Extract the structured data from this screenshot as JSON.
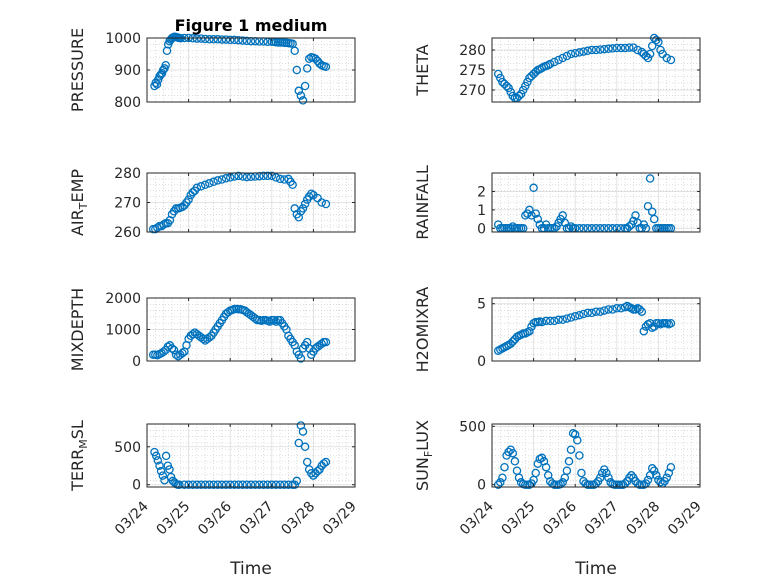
{
  "figure": {
    "title": "Figure 1 medium",
    "xlabel": "Time"
  },
  "colors": {
    "marker": "#0072BD",
    "axis": "#262626",
    "grid": "#c8c8c8"
  },
  "chart_data": [
    {
      "type": "scatter",
      "ylabel": "PRESSURE",
      "ylabel_sub": "",
      "ylim": [
        800,
        1000
      ],
      "yticks": [
        800,
        900,
        1000
      ],
      "xlim": [
        0,
        5
      ],
      "show_xticks": false,
      "show_xlabel": false,
      "x": [
        0.18,
        0.21,
        0.24,
        0.27,
        0.3,
        0.33,
        0.36,
        0.39,
        0.42,
        0.45,
        0.48,
        0.51,
        0.54,
        0.57,
        0.6,
        0.63,
        0.66,
        0.69,
        0.72,
        0.75,
        0.78,
        0.81,
        0.9,
        1.0,
        1.1,
        1.2,
        1.3,
        1.4,
        1.5,
        1.6,
        1.7,
        1.8,
        1.9,
        2.0,
        2.1,
        2.2,
        2.3,
        2.4,
        2.5,
        2.6,
        2.7,
        2.8,
        2.9,
        3.0,
        3.05,
        3.1,
        3.15,
        3.2,
        3.25,
        3.3,
        3.35,
        3.4,
        3.45,
        3.5,
        3.55,
        3.6,
        3.65,
        3.7,
        3.75,
        3.8,
        3.85,
        3.9,
        3.95,
        4.0,
        4.05,
        4.1,
        4.15,
        4.2,
        4.25,
        4.3
      ],
      "y": [
        850,
        860,
        855,
        870,
        880,
        885,
        890,
        900,
        905,
        915,
        960,
        980,
        990,
        995,
        1000,
        1002,
        1004,
        1003,
        1002,
        1001,
        1000,
        999,
        1000,
        1000,
        999,
        998,
        998,
        997,
        996,
        996,
        996,
        995,
        995,
        994,
        994,
        993,
        992,
        991,
        990,
        990,
        989,
        989,
        988,
        988,
        988,
        987,
        986,
        986,
        986,
        985,
        985,
        984,
        983,
        982,
        960,
        900,
        835,
        820,
        805,
        850,
        905,
        935,
        940,
        938,
        935,
        928,
        920,
        915,
        912,
        910
      ]
    },
    {
      "type": "scatter",
      "ylabel": "THETA",
      "ylabel_sub": "",
      "ylim": [
        267,
        283
      ],
      "yticks": [
        270,
        275,
        280
      ],
      "xlim": [
        0,
        5
      ],
      "show_xticks": false,
      "show_xlabel": false,
      "x": [
        0.15,
        0.2,
        0.25,
        0.3,
        0.35,
        0.4,
        0.45,
        0.5,
        0.55,
        0.6,
        0.65,
        0.7,
        0.75,
        0.8,
        0.85,
        0.9,
        0.95,
        1.0,
        1.05,
        1.1,
        1.15,
        1.2,
        1.25,
        1.3,
        1.35,
        1.4,
        1.5,
        1.6,
        1.7,
        1.8,
        1.9,
        2.0,
        2.1,
        2.2,
        2.3,
        2.4,
        2.5,
        2.6,
        2.7,
        2.8,
        2.9,
        3.0,
        3.1,
        3.2,
        3.3,
        3.4,
        3.5,
        3.6,
        3.65,
        3.7,
        3.75,
        3.8,
        3.85,
        3.9,
        3.95,
        4.0,
        4.05,
        4.1,
        4.2,
        4.3
      ],
      "y": [
        274,
        273,
        272,
        271.5,
        271,
        270.5,
        269.5,
        268.5,
        268,
        268,
        268.5,
        269,
        270,
        271,
        272,
        273,
        273.5,
        274,
        274.5,
        275,
        275.2,
        275.5,
        275.8,
        276,
        276.2,
        276.5,
        277,
        277.5,
        278,
        278.5,
        279,
        279.2,
        279.4,
        279.6,
        279.8,
        280,
        280,
        280.1,
        280.2,
        280.3,
        280.4,
        280.5,
        280.5,
        280.5,
        280.6,
        280.6,
        280,
        279.5,
        279,
        278.5,
        278,
        279,
        281,
        283,
        282.5,
        282,
        280,
        279,
        278,
        277.5
      ]
    },
    {
      "type": "scatter",
      "ylabel": "AIR",
      "ylabel_sub": "T",
      "ylabel_rest": "EMP",
      "ylim": [
        260,
        280
      ],
      "yticks": [
        260,
        270,
        280
      ],
      "xlim": [
        0,
        5
      ],
      "show_xticks": false,
      "show_xlabel": false,
      "x": [
        0.15,
        0.2,
        0.25,
        0.3,
        0.35,
        0.4,
        0.45,
        0.5,
        0.55,
        0.6,
        0.65,
        0.7,
        0.75,
        0.8,
        0.85,
        0.9,
        0.95,
        1.0,
        1.05,
        1.1,
        1.15,
        1.2,
        1.3,
        1.4,
        1.5,
        1.6,
        1.7,
        1.8,
        1.9,
        2.0,
        2.1,
        2.2,
        2.3,
        2.4,
        2.5,
        2.6,
        2.7,
        2.8,
        2.9,
        3.0,
        3.1,
        3.2,
        3.3,
        3.4,
        3.45,
        3.5,
        3.55,
        3.6,
        3.65,
        3.7,
        3.75,
        3.8,
        3.85,
        3.9,
        3.95,
        4.0,
        4.1,
        4.2,
        4.3
      ],
      "y": [
        261,
        261,
        261.5,
        262,
        262,
        262.5,
        263,
        263,
        264,
        266,
        267,
        268,
        268,
        268.2,
        268.5,
        269,
        270,
        271,
        272.5,
        273.5,
        274,
        275,
        275.5,
        276,
        276.5,
        277,
        277.5,
        277.8,
        278.2,
        278.5,
        278.8,
        279,
        278.8,
        278.6,
        278.7,
        278.8,
        278.9,
        279,
        279,
        279,
        278.5,
        278,
        277.8,
        278,
        277,
        276,
        268,
        266,
        265,
        267,
        268,
        269.5,
        271,
        272,
        273,
        272.5,
        271.5,
        270,
        269.5
      ]
    },
    {
      "type": "scatter",
      "ylabel": "RAINFALL",
      "ylabel_sub": "",
      "ylim": [
        -0.2,
        3.0
      ],
      "yticks": [
        0,
        1,
        2
      ],
      "xlim": [
        0,
        5
      ],
      "show_xticks": false,
      "show_xlabel": false,
      "x": [
        0.15,
        0.2,
        0.25,
        0.3,
        0.35,
        0.4,
        0.45,
        0.5,
        0.55,
        0.6,
        0.65,
        0.7,
        0.75,
        0.8,
        0.85,
        0.9,
        0.95,
        1.0,
        1.05,
        1.1,
        1.15,
        1.2,
        1.25,
        1.3,
        1.35,
        1.4,
        1.45,
        1.5,
        1.55,
        1.6,
        1.65,
        1.7,
        1.75,
        1.8,
        1.85,
        1.9,
        1.95,
        2.0,
        2.1,
        2.2,
        2.3,
        2.4,
        2.5,
        2.6,
        2.7,
        2.8,
        2.9,
        3.0,
        3.1,
        3.2,
        3.25,
        3.3,
        3.35,
        3.4,
        3.45,
        3.5,
        3.55,
        3.6,
        3.65,
        3.7,
        3.75,
        3.8,
        3.85,
        3.9,
        3.95,
        4.0,
        4.05,
        4.1,
        4.15,
        4.2,
        4.25,
        4.3
      ],
      "y": [
        0.2,
        0,
        0,
        0,
        0,
        0,
        0,
        0.1,
        0,
        0,
        0,
        0,
        0,
        0.7,
        0.8,
        1.0,
        0.7,
        2.2,
        0.8,
        0.5,
        0.2,
        0,
        0,
        0.2,
        0,
        0,
        0,
        0,
        0.1,
        0.3,
        0.5,
        0.7,
        0.3,
        0,
        0,
        0.1,
        0,
        0,
        0,
        0,
        0,
        0,
        0,
        0,
        0,
        0,
        0,
        0,
        0,
        0,
        0,
        0.1,
        0.2,
        0.4,
        0.7,
        0.3,
        0,
        0,
        0.2,
        0,
        1.2,
        2.7,
        0.9,
        0.5,
        0,
        0,
        0,
        0,
        0,
        0,
        0,
        0
      ]
    },
    {
      "type": "scatter",
      "ylabel": "MIXDEPTH",
      "ylabel_sub": "",
      "ylim": [
        0,
        2000
      ],
      "yticks": [
        0,
        1000,
        2000
      ],
      "xlim": [
        0,
        5
      ],
      "show_xticks": false,
      "show_xlabel": false,
      "x": [
        0.15,
        0.2,
        0.25,
        0.3,
        0.35,
        0.4,
        0.45,
        0.5,
        0.55,
        0.6,
        0.65,
        0.7,
        0.75,
        0.8,
        0.85,
        0.9,
        0.95,
        1.0,
        1.05,
        1.1,
        1.15,
        1.2,
        1.25,
        1.3,
        1.35,
        1.4,
        1.45,
        1.5,
        1.55,
        1.6,
        1.65,
        1.7,
        1.75,
        1.8,
        1.85,
        1.9,
        1.95,
        2.0,
        2.05,
        2.1,
        2.15,
        2.2,
        2.25,
        2.3,
        2.35,
        2.4,
        2.45,
        2.5,
        2.55,
        2.6,
        2.65,
        2.7,
        2.75,
        2.8,
        2.85,
        2.9,
        2.95,
        3.0,
        3.05,
        3.1,
        3.15,
        3.2,
        3.25,
        3.3,
        3.35,
        3.4,
        3.45,
        3.5,
        3.55,
        3.6,
        3.65,
        3.7,
        3.75,
        3.8,
        3.85,
        3.9,
        3.95,
        4.0,
        4.05,
        4.1,
        4.15,
        4.2,
        4.25,
        4.3
      ],
      "y": [
        200,
        200,
        180,
        220,
        250,
        300,
        350,
        450,
        500,
        400,
        350,
        200,
        150,
        200,
        250,
        300,
        500,
        700,
        800,
        850,
        900,
        850,
        800,
        750,
        700,
        650,
        700,
        750,
        800,
        900,
        1000,
        1100,
        1200,
        1300,
        1400,
        1500,
        1550,
        1600,
        1620,
        1650,
        1650,
        1640,
        1640,
        1620,
        1600,
        1550,
        1500,
        1450,
        1400,
        1350,
        1300,
        1300,
        1280,
        1300,
        1300,
        1280,
        1250,
        1300,
        1300,
        1250,
        1300,
        1300,
        1200,
        1100,
        1000,
        800,
        700,
        600,
        500,
        300,
        200,
        80,
        400,
        500,
        600,
        400,
        200,
        300,
        400,
        450,
        500,
        550,
        600,
        600
      ]
    },
    {
      "type": "scatter",
      "ylabel": "H2OMIXRA",
      "ylabel_sub": "",
      "ylim": [
        0,
        5.5
      ],
      "yticks": [
        0,
        5
      ],
      "xlim": [
        0,
        5
      ],
      "show_xticks": false,
      "show_xlabel": false,
      "x": [
        0.15,
        0.2,
        0.25,
        0.3,
        0.35,
        0.4,
        0.45,
        0.5,
        0.55,
        0.6,
        0.65,
        0.7,
        0.75,
        0.8,
        0.85,
        0.9,
        0.95,
        1.0,
        1.05,
        1.1,
        1.15,
        1.2,
        1.3,
        1.4,
        1.5,
        1.6,
        1.7,
        1.8,
        1.9,
        2.0,
        2.1,
        2.2,
        2.3,
        2.4,
        2.5,
        2.6,
        2.7,
        2.8,
        2.9,
        3.0,
        3.1,
        3.2,
        3.25,
        3.3,
        3.35,
        3.4,
        3.45,
        3.5,
        3.55,
        3.6,
        3.65,
        3.7,
        3.75,
        3.8,
        3.85,
        3.9,
        3.95,
        4.0,
        4.05,
        4.1,
        4.15,
        4.2,
        4.25,
        4.3
      ],
      "y": [
        0.9,
        1.0,
        1.1,
        1.2,
        1.3,
        1.4,
        1.5,
        1.7,
        1.9,
        2.1,
        2.2,
        2.3,
        2.4,
        2.4,
        2.5,
        2.6,
        3.0,
        3.3,
        3.4,
        3.4,
        3.45,
        3.4,
        3.5,
        3.5,
        3.5,
        3.6,
        3.6,
        3.7,
        3.8,
        3.9,
        4.0,
        4.1,
        4.2,
        4.2,
        4.3,
        4.3,
        4.4,
        4.5,
        4.5,
        4.6,
        4.6,
        4.7,
        4.8,
        4.7,
        4.6,
        4.5,
        4.5,
        4.6,
        4.5,
        4.3,
        2.6,
        3.0,
        3.2,
        3.3,
        2.9,
        3.0,
        3.3,
        3.3,
        3.2,
        3.3,
        3.3,
        3.3,
        3.2,
        3.3
      ]
    },
    {
      "type": "scatter",
      "ylabel": "TERR",
      "ylabel_sub": "M",
      "ylabel_rest": "SL",
      "ylim": [
        -30,
        800
      ],
      "yticks": [
        0,
        500
      ],
      "xlim": [
        0,
        5
      ],
      "xticks": [
        0,
        1,
        2,
        3,
        4,
        5
      ],
      "xticklabels": [
        "03/24",
        "03/25",
        "03/26",
        "03/27",
        "03/28",
        "03/29"
      ],
      "show_xticks": true,
      "show_xlabel": true,
      "x": [
        0.18,
        0.22,
        0.26,
        0.3,
        0.34,
        0.38,
        0.42,
        0.46,
        0.5,
        0.54,
        0.58,
        0.62,
        0.66,
        0.7,
        0.74,
        0.78,
        0.9,
        1.0,
        1.1,
        1.2,
        1.3,
        1.4,
        1.5,
        1.6,
        1.7,
        1.8,
        1.9,
        2.0,
        2.1,
        2.2,
        2.3,
        2.4,
        2.5,
        2.6,
        2.7,
        2.8,
        2.9,
        3.0,
        3.1,
        3.2,
        3.3,
        3.4,
        3.5,
        3.55,
        3.6,
        3.65,
        3.7,
        3.75,
        3.8,
        3.85,
        3.9,
        3.95,
        4.0,
        4.05,
        4.1,
        4.15,
        4.2,
        4.25,
        4.3
      ],
      "y": [
        430,
        380,
        320,
        250,
        180,
        120,
        60,
        380,
        250,
        200,
        100,
        50,
        30,
        10,
        0,
        0,
        0,
        0,
        0,
        0,
        0,
        0,
        0,
        0,
        0,
        0,
        0,
        0,
        0,
        0,
        0,
        0,
        0,
        0,
        0,
        0,
        0,
        0,
        0,
        0,
        0,
        0,
        0,
        0,
        50,
        550,
        780,
        700,
        500,
        300,
        200,
        150,
        120,
        150,
        180,
        200,
        250,
        280,
        300
      ]
    },
    {
      "type": "scatter",
      "ylabel": "SUN",
      "ylabel_sub": "F",
      "ylabel_rest": "LUX",
      "ylim": [
        -20,
        520
      ],
      "yticks": [
        0,
        500
      ],
      "xlim": [
        0,
        5
      ],
      "xticks": [
        0,
        1,
        2,
        3,
        4,
        5
      ],
      "xticklabels": [
        "03/24",
        "03/25",
        "03/26",
        "03/27",
        "03/28",
        "03/29"
      ],
      "show_xticks": true,
      "show_xlabel": true,
      "x": [
        0.15,
        0.2,
        0.25,
        0.3,
        0.35,
        0.4,
        0.45,
        0.5,
        0.55,
        0.6,
        0.65,
        0.7,
        0.75,
        0.8,
        0.85,
        0.9,
        0.95,
        1.0,
        1.05,
        1.1,
        1.15,
        1.2,
        1.25,
        1.3,
        1.35,
        1.4,
        1.45,
        1.5,
        1.55,
        1.6,
        1.65,
        1.7,
        1.75,
        1.8,
        1.85,
        1.9,
        1.95,
        2.0,
        2.05,
        2.1,
        2.15,
        2.2,
        2.25,
        2.3,
        2.35,
        2.4,
        2.45,
        2.5,
        2.55,
        2.6,
        2.65,
        2.7,
        2.75,
        2.8,
        2.85,
        2.9,
        2.95,
        3.0,
        3.05,
        3.1,
        3.15,
        3.2,
        3.25,
        3.3,
        3.35,
        3.4,
        3.45,
        3.5,
        3.55,
        3.6,
        3.65,
        3.7,
        3.75,
        3.8,
        3.85,
        3.9,
        3.95,
        4.0,
        4.05,
        4.1,
        4.15,
        4.2,
        4.25,
        4.3
      ],
      "y": [
        0,
        20,
        60,
        150,
        250,
        280,
        300,
        270,
        200,
        120,
        60,
        20,
        5,
        0,
        0,
        0,
        10,
        40,
        100,
        180,
        220,
        230,
        200,
        150,
        80,
        30,
        10,
        0,
        0,
        0,
        5,
        20,
        60,
        120,
        200,
        300,
        440,
        430,
        380,
        250,
        100,
        30,
        10,
        0,
        0,
        0,
        0,
        10,
        30,
        60,
        100,
        130,
        100,
        60,
        20,
        5,
        0,
        0,
        0,
        0,
        0,
        10,
        30,
        60,
        80,
        60,
        30,
        10,
        0,
        0,
        0,
        10,
        40,
        80,
        140,
        120,
        80,
        40,
        20,
        10,
        30,
        60,
        100,
        150
      ]
    }
  ]
}
